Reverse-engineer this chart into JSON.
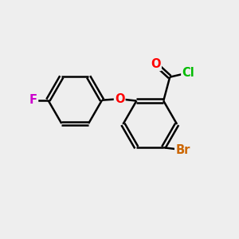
{
  "background_color": "#eeeeee",
  "bond_color": "#000000",
  "bond_width": 1.8,
  "atom_colors": {
    "F": "#cc00cc",
    "O": "#ff0000",
    "Cl": "#00bb00",
    "Br": "#cc6600",
    "C": "#000000"
  },
  "font_size_atoms": 10.5,
  "fig_width": 3.0,
  "fig_height": 3.0
}
